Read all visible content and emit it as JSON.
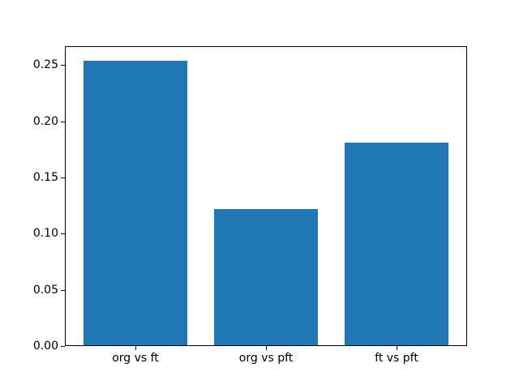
{
  "chart_data": {
    "type": "bar",
    "title": "",
    "xlabel": "",
    "ylabel": "",
    "categories": [
      "org vs ft",
      "org vs pft",
      "ft vs pft"
    ],
    "values": [
      0.254,
      0.122,
      0.181
    ],
    "bar_color": "#1f77b4",
    "bar_width": 0.8,
    "xlim": [
      -0.54,
      2.54
    ],
    "ylim": [
      0,
      0.2667
    ],
    "yticks": [
      0,
      0.05,
      0.1,
      0.15,
      0.2,
      0.25
    ],
    "ytick_labels": [
      "0.00",
      "0.05",
      "0.10",
      "0.15",
      "0.20",
      "0.25"
    ],
    "grid": false,
    "legend": null
  }
}
